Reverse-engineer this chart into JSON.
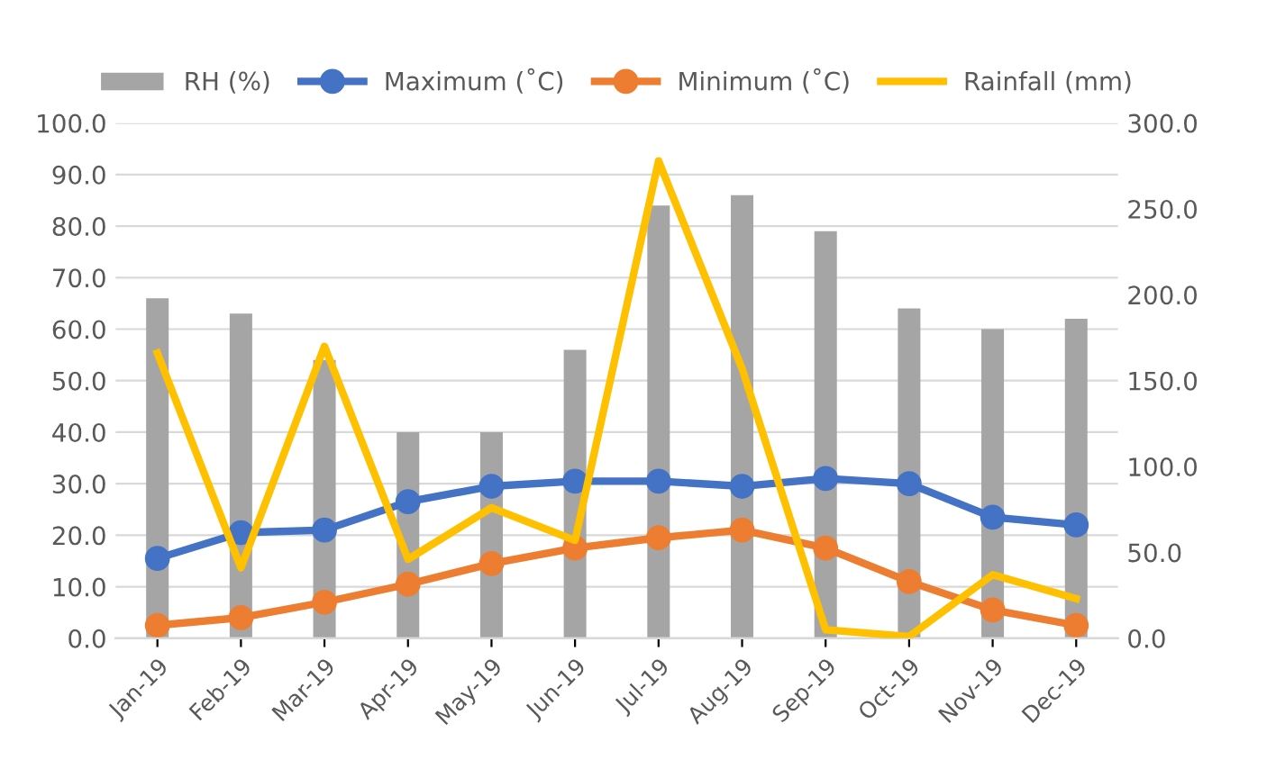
{
  "chart_data": {
    "type": "bar",
    "categories": [
      "Jan-19",
      "Feb-19",
      "Mar-19",
      "Apr-19",
      "May-19",
      "Jun-19",
      "Jul-19",
      "Aug-19",
      "Sep-19",
      "Oct-19",
      "Nov-19",
      "Dec-19"
    ],
    "series": [
      {
        "name": "RH (%)",
        "color": "#a5a5a5",
        "values": [
          66,
          63,
          54,
          40,
          40,
          56,
          84,
          86,
          79,
          64,
          60,
          62
        ]
      },
      {
        "name": "Maximum (˚C)",
        "type": "line",
        "marker": "circle",
        "color": "#4472c4",
        "values": [
          15.5,
          20.5,
          21,
          26.5,
          29.5,
          30.5,
          30.5,
          29.5,
          31,
          30,
          23.5,
          22
        ]
      },
      {
        "name": "Minimum (˚C)",
        "type": "line",
        "marker": "circle",
        "color": "#ed7d31",
        "values": [
          2.5,
          4,
          7,
          10.5,
          14.5,
          17.5,
          19.5,
          21,
          17.5,
          11,
          5.5,
          2.5
        ]
      },
      {
        "name": "Rainfall (mm)",
        "type": "line",
        "axis": "y2",
        "color": "#ffc000",
        "values": [
          166,
          41,
          170,
          46,
          76,
          57,
          278,
          157,
          5,
          1,
          37,
          23
        ]
      }
    ],
    "ylim": [
      0,
      100
    ],
    "yticks": [
      {
        "value": 0,
        "label": "0.0"
      },
      {
        "value": 10,
        "label": "10.0"
      },
      {
        "value": 20,
        "label": "20.0"
      },
      {
        "value": 30,
        "label": "30.0"
      },
      {
        "value": 40,
        "label": "40.0"
      },
      {
        "value": 50,
        "label": "50.0"
      },
      {
        "value": 60,
        "label": "60.0"
      },
      {
        "value": 70,
        "label": "70.0"
      },
      {
        "value": 80,
        "label": "80.0"
      },
      {
        "value": 90,
        "label": "90.0"
      },
      {
        "value": 100,
        "label": "100.0"
      }
    ],
    "y2lim": [
      0,
      300
    ],
    "y2ticks": [
      {
        "value": 0,
        "label": "0.0"
      },
      {
        "value": 50,
        "label": "50.0"
      },
      {
        "value": 100,
        "label": "100.0"
      },
      {
        "value": 150,
        "label": "150.0"
      },
      {
        "value": 200,
        "label": "200.0"
      },
      {
        "value": 250,
        "label": "250.0"
      },
      {
        "value": 300,
        "label": "300.0"
      }
    ],
    "grid": "y",
    "legend": "top"
  }
}
